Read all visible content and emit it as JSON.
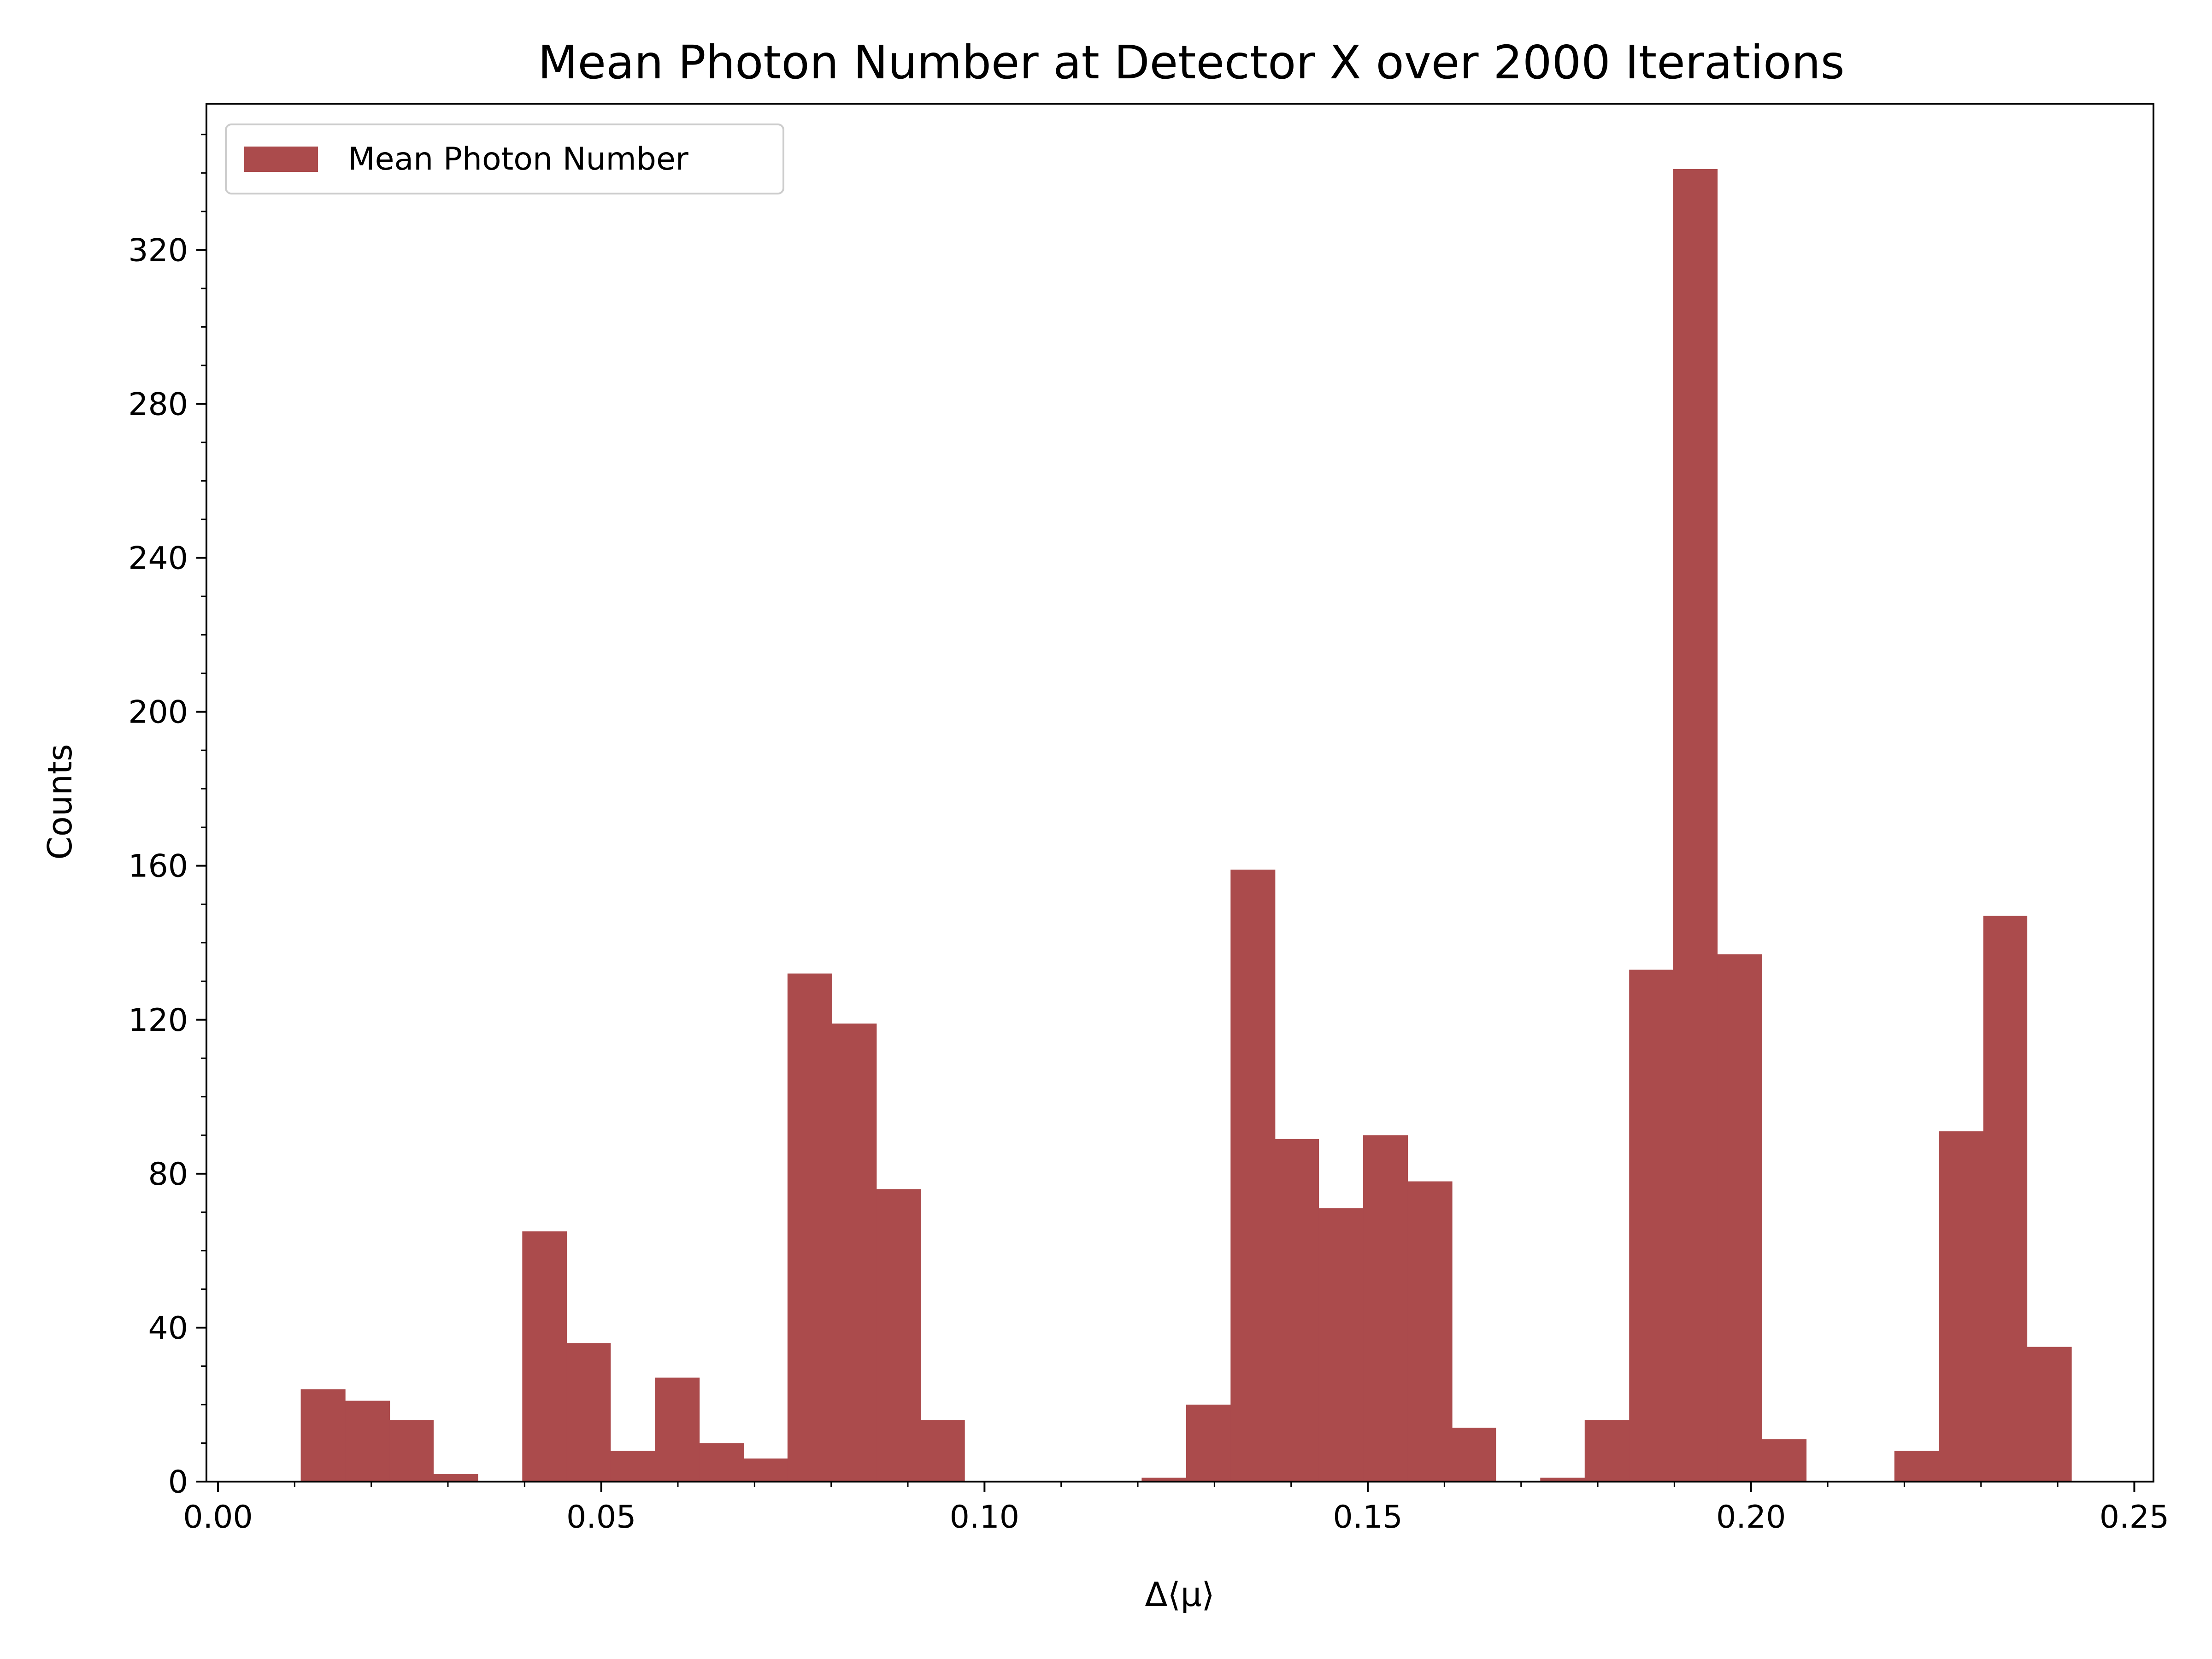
{
  "chart_data": {
    "type": "bar",
    "title": "Mean Photon Number at Detector X over 2000 Iterations",
    "xlabel": "Δ⟨μ⟩",
    "ylabel": "Counts",
    "xlim": [
      -0.0015,
      0.2525
    ],
    "ylim": [
      0,
      358
    ],
    "xticks": [
      0.0,
      0.05,
      0.1,
      0.15,
      0.2,
      0.25
    ],
    "xtick_labels": [
      "0.00",
      "0.05",
      "0.10",
      "0.15",
      "0.20",
      "0.25"
    ],
    "yticks": [
      0,
      40,
      80,
      120,
      160,
      200,
      240,
      280,
      320
    ],
    "ytick_labels": [
      "0",
      "40",
      "80",
      "120",
      "160",
      "200",
      "240",
      "280",
      "320"
    ],
    "x_minor_step": 0.01,
    "y_minor_step": 10,
    "grid": false,
    "legend_position": "top-left",
    "color": "#ab4b4c",
    "series": [
      {
        "name": "Mean Photon Number",
        "bin_edges": [
          0.0108,
          0.0166,
          0.0224,
          0.0281,
          0.0339,
          0.0397,
          0.0455,
          0.0512,
          0.057,
          0.0628,
          0.0686,
          0.0743,
          0.0801,
          0.0859,
          0.0917,
          0.0974,
          0.1032,
          0.109,
          0.1148,
          0.1205,
          0.1263,
          0.1321,
          0.1379,
          0.1436,
          0.1494,
          0.1552,
          0.161,
          0.1667,
          0.1725,
          0.1783,
          0.1841,
          0.1898,
          0.1956,
          0.2014,
          0.2072,
          0.2129,
          0.2187,
          0.2245,
          0.2303,
          0.236,
          0.2418
        ],
        "counts": [
          24,
          21,
          16,
          2,
          0,
          65,
          36,
          8,
          27,
          10,
          6,
          132,
          119,
          76,
          16,
          0,
          0,
          0,
          0,
          1,
          20,
          159,
          89,
          71,
          90,
          78,
          14,
          0,
          1,
          16,
          133,
          341,
          137,
          11,
          0,
          0,
          8,
          91,
          147,
          35
        ]
      }
    ]
  }
}
